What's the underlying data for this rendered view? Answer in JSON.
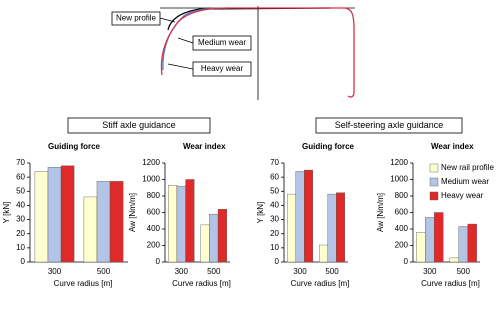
{
  "profile_diagram": {
    "labels": [
      "New profile",
      "Medium wear",
      "Heavy wear"
    ]
  },
  "group_labels": [
    "Stiff axle guidance",
    "Self-steering axle guidance"
  ],
  "chart_data": [
    {
      "type": "bar",
      "title": "Guiding force",
      "ylabel": "Y  [kN]",
      "xlabel": "Curve radius   [m]",
      "categories": [
        "300",
        "500"
      ],
      "ylim": [
        0,
        70
      ],
      "yticks": [
        0,
        10,
        20,
        30,
        40,
        50,
        60,
        70
      ],
      "series": [
        {
          "color": "#ffffd0",
          "values": [
            64,
            46
          ]
        },
        {
          "color": "#b4c4e6",
          "values": [
            67,
            57
          ]
        },
        {
          "color": "#e02a2a",
          "values": [
            68,
            57
          ]
        }
      ]
    },
    {
      "type": "bar",
      "title": "Wear index",
      "ylabel": "Aw  [Nm/m]",
      "xlabel": "Curve radius   [m]",
      "categories": [
        "300",
        "500"
      ],
      "ylim": [
        0,
        1200
      ],
      "yticks": [
        0,
        200,
        400,
        600,
        800,
        1000,
        1200
      ],
      "series": [
        {
          "color": "#ffffd0",
          "values": [
            930,
            450
          ]
        },
        {
          "color": "#b4c4e6",
          "values": [
            920,
            580
          ]
        },
        {
          "color": "#e02a2a",
          "values": [
            1000,
            640
          ]
        }
      ]
    },
    {
      "type": "bar",
      "title": "Guiding force",
      "ylabel": "Y  [kN]",
      "xlabel": "Curve radius   [m]",
      "categories": [
        "300",
        "500"
      ],
      "ylim": [
        0,
        70
      ],
      "yticks": [
        0,
        10,
        20,
        30,
        40,
        50,
        60,
        70
      ],
      "series": [
        {
          "color": "#ffffd0",
          "values": [
            48,
            12
          ]
        },
        {
          "color": "#b4c4e6",
          "values": [
            64,
            48
          ]
        },
        {
          "color": "#e02a2a",
          "values": [
            65,
            49
          ]
        }
      ]
    },
    {
      "type": "bar",
      "title": "Wear index",
      "ylabel": "Aw  [Nm/m]",
      "xlabel": "Curve radius   [m]",
      "categories": [
        "300",
        "500"
      ],
      "ylim": [
        0,
        1200
      ],
      "yticks": [
        0,
        200,
        400,
        600,
        800,
        1000,
        1200
      ],
      "legend": "upper right",
      "series": [
        {
          "name": "New rail profile",
          "color": "#ffffd0",
          "values": [
            360,
            50
          ]
        },
        {
          "name": "Medium wear",
          "color": "#b4c4e6",
          "values": [
            540,
            430
          ]
        },
        {
          "name": "Heavy wear",
          "color": "#e02a2a",
          "values": [
            600,
            460
          ]
        }
      ]
    }
  ]
}
